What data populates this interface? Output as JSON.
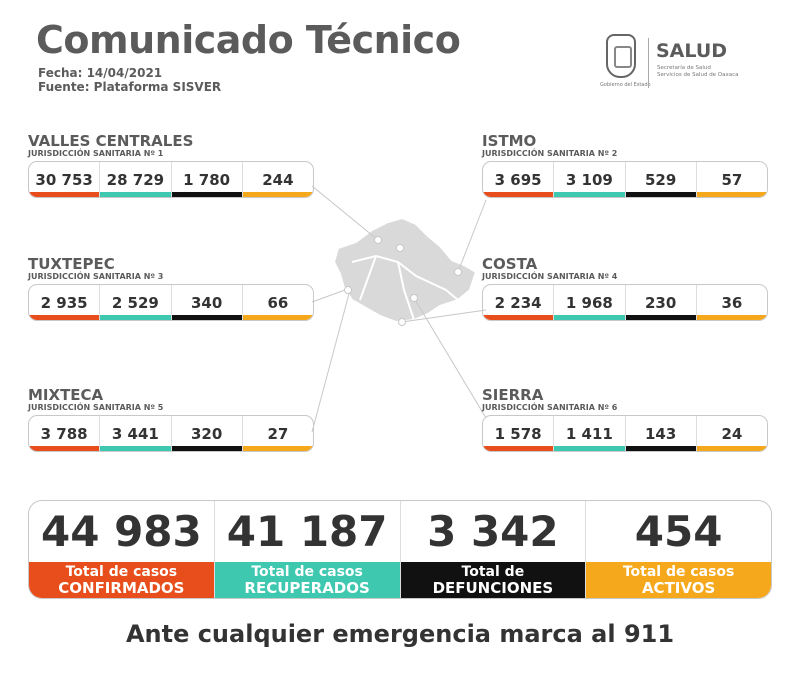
{
  "header": {
    "title": "Comunicado Técnico",
    "fecha": "Fecha: 14/04/2021",
    "fuente": "Fuente: Plataforma SISVER"
  },
  "logo": {
    "gobierno": "Gobierno del Estado",
    "salud": "SALUD",
    "sub1": "Secretaría de Salud",
    "sub2": "Servicios de Salud de Oaxaca"
  },
  "colors": {
    "confirmados": "#e84e1b",
    "recuperados": "#3fc8b0",
    "defunciones": "#111111",
    "activos": "#f6a81c"
  },
  "regions": [
    {
      "name": "VALLES CENTRALES",
      "jurisdiccion": "JURISDICCIÓN SANITARIA Nº 1",
      "values": [
        "30 753",
        "28 729",
        "1 780",
        "244"
      ]
    },
    {
      "name": "ISTMO",
      "jurisdiccion": "JURISDICCIÓN SANITARIA Nº 2",
      "values": [
        "3 695",
        "3 109",
        "529",
        "57"
      ]
    },
    {
      "name": "TUXTEPEC",
      "jurisdiccion": "JURISDICCIÓN SANITARIA Nº 3",
      "values": [
        "2 935",
        "2 529",
        "340",
        "66"
      ]
    },
    {
      "name": "COSTA",
      "jurisdiccion": "JURISDICCIÓN SANITARIA Nº 4",
      "values": [
        "2 234",
        "1 968",
        "230",
        "36"
      ]
    },
    {
      "name": "MIXTECA",
      "jurisdiccion": "JURISDICCIÓN SANITARIA Nº 5",
      "values": [
        "3 788",
        "3 441",
        "320",
        "27"
      ]
    },
    {
      "name": "SIERRA",
      "jurisdiccion": "JURISDICCIÓN SANITARIA Nº 6",
      "values": [
        "1 578",
        "1 411",
        "143",
        "24"
      ]
    }
  ],
  "totals": [
    {
      "value": "44 983",
      "label1": "Total de casos",
      "label2": "CONFIRMADOS"
    },
    {
      "value": "41 187",
      "label1": "Total de casos",
      "label2": "RECUPERADOS"
    },
    {
      "value": "3 342",
      "label1": "Total de",
      "label2": "DEFUNCIONES"
    },
    {
      "value": "454",
      "label1": "Total de casos",
      "label2": "ACTIVOS"
    }
  ],
  "footer": "Ante cualquier emergencia marca al 911"
}
